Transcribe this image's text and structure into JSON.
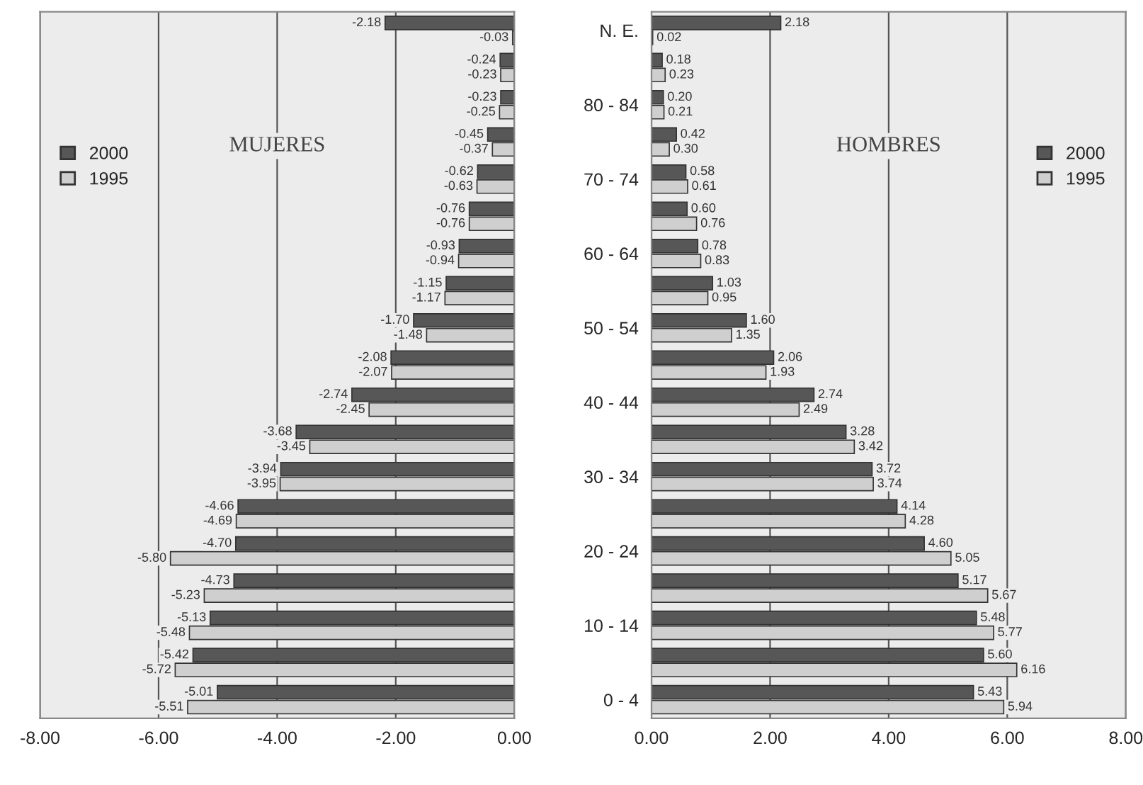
{
  "chart_data": [
    {
      "type": "bar",
      "orientation": "horizontal",
      "annotations": [
        "MUJERES"
      ],
      "categories": [
        null,
        null,
        null,
        null,
        null,
        null,
        null,
        null,
        null,
        null,
        null,
        null,
        null,
        null,
        null,
        null,
        null,
        null,
        null
      ],
      "series": [
        {
          "name": "2000",
          "color": "#575757",
          "values": [
            -2.18,
            -0.24,
            -0.23,
            -0.45,
            -0.62,
            -0.76,
            -0.93,
            -1.15,
            -1.7,
            -2.08,
            -2.74,
            -3.68,
            -3.94,
            -4.66,
            -4.7,
            -4.73,
            -5.13,
            -5.42,
            -5.01
          ],
          "value_labels": [
            "-2.18",
            "-0.24",
            "-0.23",
            "-0.45",
            "-0.62",
            "-0.76",
            "-0.93",
            "-1.15",
            "-1.70",
            "-2.08",
            "-2.74",
            "-3.68",
            "-3.94",
            "-4.66",
            "-4.70",
            "-4.73",
            "-5.13",
            "-5.42",
            "-5.01"
          ]
        },
        {
          "name": "1995",
          "color": "#cfcfcf",
          "values": [
            -0.03,
            -0.23,
            -0.25,
            -0.37,
            -0.63,
            -0.76,
            -0.94,
            -1.17,
            -1.48,
            -2.07,
            -2.45,
            -3.45,
            -3.95,
            -4.69,
            -5.8,
            -5.23,
            -5.48,
            -5.72,
            -5.51
          ],
          "value_labels": [
            "-0.03",
            "-0.23",
            "-0.25",
            "-0.37",
            "-0.63",
            "-0.76",
            "-0.94",
            "-1.17",
            "-1.48",
            "-2.07",
            "-2.45",
            "-3.45",
            "-3.95",
            "-4.69",
            "-5.80",
            "-5.23",
            "-5.48",
            "-5.72",
            "-5.51"
          ]
        }
      ],
      "xlim": [
        -8,
        0
      ],
      "xticks": [
        {
          "value": -8,
          "label": "-8.00"
        },
        {
          "value": -6,
          "label": "-6.00"
        },
        {
          "value": -4,
          "label": "-4.00"
        },
        {
          "value": -2,
          "label": "-2.00"
        },
        {
          "value": 0,
          "label": "0.00"
        }
      ],
      "grid": "x",
      "legend": "left",
      "tick_labels": "x"
    },
    {
      "type": "bar",
      "orientation": "horizontal",
      "annotations": [
        "HOMBRES"
      ],
      "categories": [
        "N. E.",
        null,
        "80 - 84",
        null,
        "70 - 74",
        null,
        "60 - 64",
        null,
        "50 - 54",
        null,
        "40 - 44",
        null,
        "30 - 34",
        null,
        "20 - 24",
        null,
        "10 - 14",
        null,
        "0 - 4"
      ],
      "series": [
        {
          "name": "2000",
          "color": "#575757",
          "values": [
            2.18,
            0.18,
            0.2,
            0.42,
            0.58,
            0.6,
            0.78,
            1.03,
            1.6,
            2.06,
            2.74,
            3.28,
            3.72,
            4.14,
            4.6,
            5.17,
            5.48,
            5.6,
            5.43
          ],
          "value_labels": [
            "2.18",
            "0.18",
            "0.20",
            "0.42",
            "0.58",
            "0.60",
            "0.78",
            "1.03",
            "1.60",
            "2.06",
            "2.74",
            "3.28",
            "3.72",
            "4.14",
            "4.60",
            "5.17",
            "5.48",
            "5.60",
            "5.43"
          ]
        },
        {
          "name": "1995",
          "color": "#cfcfcf",
          "values": [
            0.02,
            0.23,
            0.21,
            0.3,
            0.61,
            0.76,
            0.83,
            0.95,
            1.35,
            1.93,
            2.49,
            3.42,
            3.74,
            4.28,
            5.05,
            5.67,
            5.77,
            6.16,
            5.94
          ],
          "value_labels": [
            "0.02",
            "0.23",
            "0.21",
            "0.30",
            "0.61",
            "0.76",
            "0.83",
            "0.95",
            "1.35",
            "1.93",
            "2.49",
            "3.42",
            "3.74",
            "4.28",
            "5.05",
            "5.67",
            "5.77",
            "6.16",
            "5.94"
          ]
        }
      ],
      "xlim": [
        0,
        8
      ],
      "xticks": [
        {
          "value": 0,
          "label": "0.00"
        },
        {
          "value": 2,
          "label": "2.00"
        },
        {
          "value": 4,
          "label": "4.00"
        },
        {
          "value": 6,
          "label": "6.00"
        },
        {
          "value": 8,
          "label": "8.00"
        }
      ],
      "grid": "x",
      "legend": "right"
    }
  ]
}
